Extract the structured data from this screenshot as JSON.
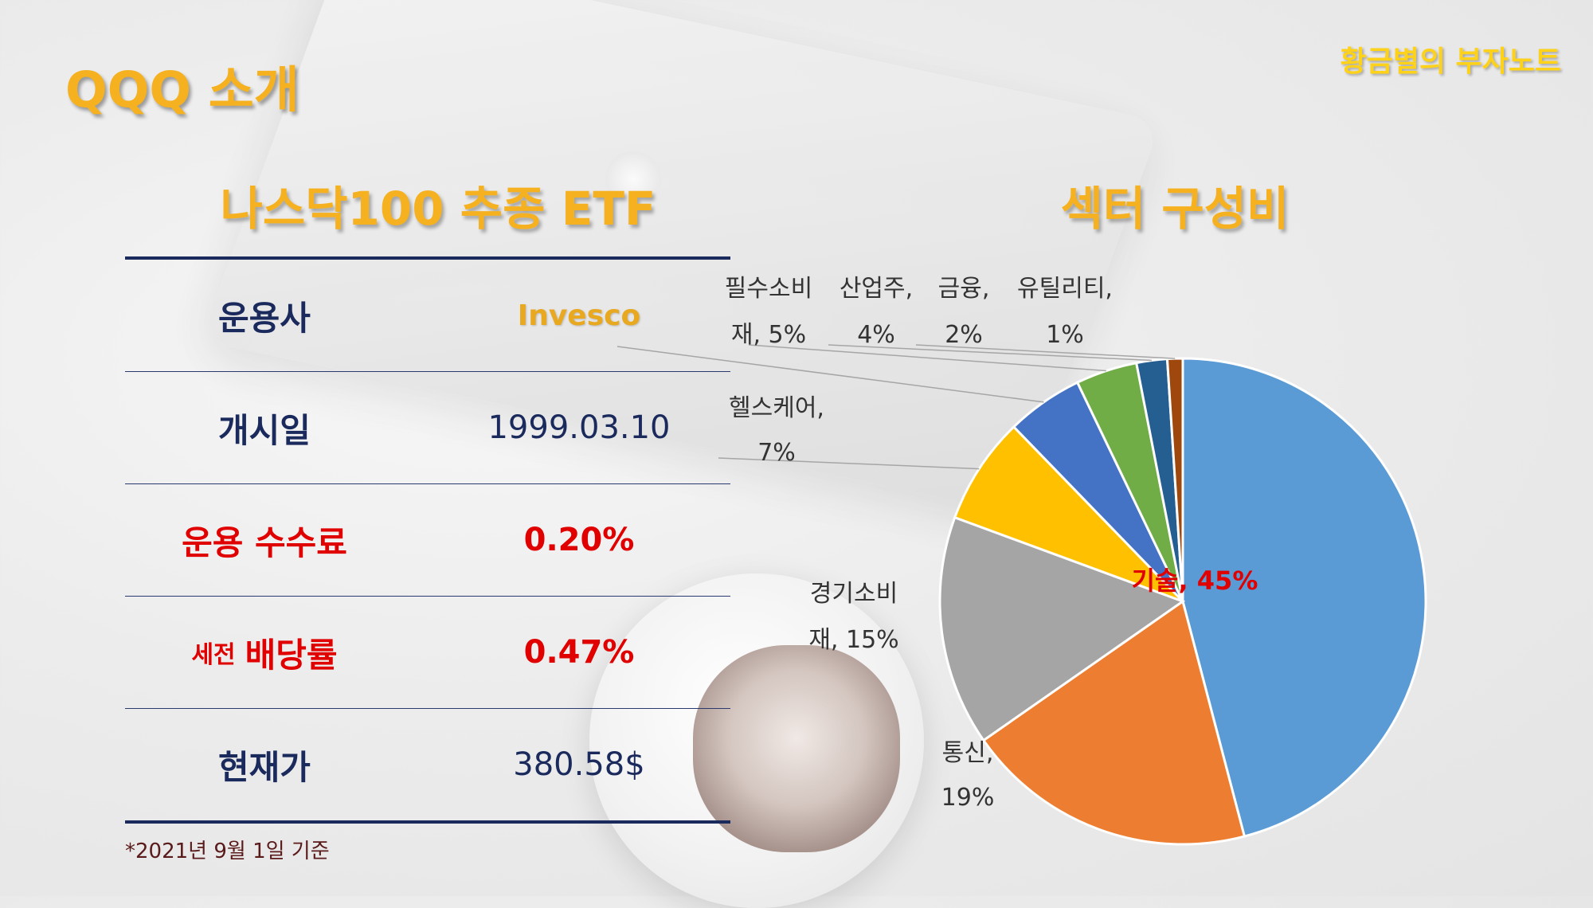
{
  "header": {
    "title": "QQQ 소개",
    "brand": "황금별의 부자노트"
  },
  "left": {
    "subtitle": "나스닥100 추종 ETF",
    "rows": [
      {
        "label": "운용사",
        "value": "Invesco"
      },
      {
        "label": "개시일",
        "value": "1999.03.10"
      },
      {
        "label": "운용 수수료",
        "value": "0.20%"
      },
      {
        "label_small": "세전",
        "label": "배당률",
        "value": "0.47%"
      },
      {
        "label": "현재가",
        "value": "380.58$"
      }
    ],
    "footnote": "*2021년 9월 1일 기준"
  },
  "right": {
    "subtitle": "섹터 구성비"
  },
  "colors": {
    "gold": "#f5b120",
    "navy": "#1b2a5c",
    "red": "#e00000"
  },
  "chart_data": {
    "type": "pie",
    "slices": [
      {
        "label": "기술",
        "value": 45,
        "label_lines": [
          "기술, 45%"
        ],
        "color": "#5b9bd5"
      },
      {
        "label": "통신",
        "value": 19,
        "label_lines": [
          "통신,",
          "19%"
        ],
        "color": "#ed7d31"
      },
      {
        "label": "경기소비재",
        "value": 15,
        "label_lines": [
          "경기소비",
          "재, 15%"
        ],
        "color": "#a5a5a5"
      },
      {
        "label": "헬스케어",
        "value": 7,
        "label_lines": [
          "헬스케어,",
          "7%"
        ],
        "color": "#ffc000"
      },
      {
        "label": "필수소비재",
        "value": 5,
        "label_lines": [
          "필수소비",
          "재, 5%"
        ],
        "color": "#4472c4"
      },
      {
        "label": "산업주",
        "value": 4,
        "label_lines": [
          "산업주,",
          "4%"
        ],
        "color": "#70ad47"
      },
      {
        "label": "금융",
        "value": 2,
        "label_lines": [
          "금융,",
          "2%"
        ],
        "color": "#255e91"
      },
      {
        "label": "유틸리티",
        "value": 1,
        "label_lines": [
          "유틸리티,",
          "1%"
        ],
        "color": "#9e480e"
      }
    ]
  }
}
